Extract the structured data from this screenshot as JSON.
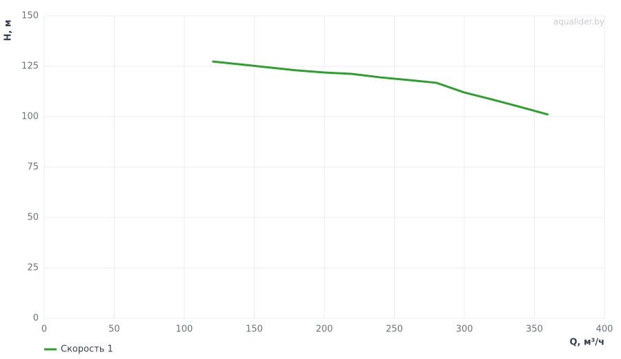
{
  "chart_data": {
    "type": "line",
    "watermark": "aqualider.by",
    "x_label": "Q, м³/ч",
    "y_label": "H, м",
    "x": [
      120,
      150,
      180,
      200,
      220,
      240,
      260,
      280,
      300,
      320,
      340,
      360
    ],
    "series": [
      {
        "name": "Скорость 1",
        "color": "#2ca02c",
        "values": [
          127.4,
          125.2,
          123,
          121.9,
          121.2,
          119.5,
          118.2,
          116.8,
          112,
          108.5,
          104.8,
          101
        ]
      }
    ],
    "xlim": [
      0,
      400
    ],
    "xticks": [
      0,
      50,
      100,
      150,
      200,
      250,
      300,
      350,
      400
    ],
    "ylim": [
      0,
      150
    ],
    "yticks": [
      0,
      25,
      50,
      75,
      100,
      125,
      150
    ],
    "grid": true,
    "legend": "bottom-left"
  }
}
